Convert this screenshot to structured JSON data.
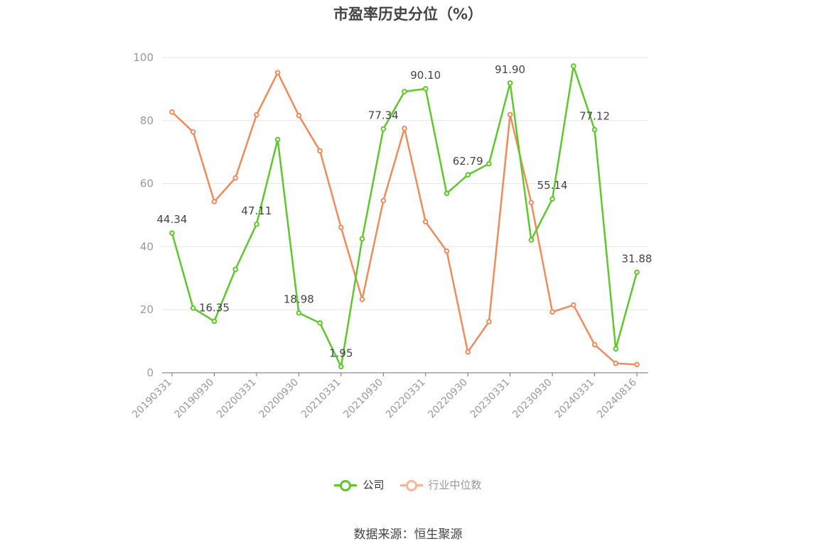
{
  "title": "市盈率历史分位（%）",
  "source": "数据来源：恒生聚源",
  "colors": {
    "company": "#5ec82a",
    "industry": "#f28a5a",
    "legend_industry": "#f9b49a",
    "axis_text": "#999999",
    "grid": "#e6e6ea",
    "label": "#444444"
  },
  "chart_data": {
    "type": "line",
    "ylim": [
      0,
      100
    ],
    "yticks": [
      0,
      20,
      40,
      60,
      80,
      100
    ],
    "x_ticks": [
      "20190331",
      "20190930",
      "20200331",
      "20200930",
      "20210331",
      "20210930",
      "20220331",
      "20220930",
      "20230331",
      "20230930",
      "20240331",
      "20240816"
    ],
    "x": [
      "20190331",
      "20190630",
      "20190930",
      "20191231",
      "20200331",
      "20200630",
      "20200930",
      "20201231",
      "20210331",
      "20210630",
      "20210930",
      "20211231",
      "20220331",
      "20220630",
      "20220930",
      "20221231",
      "20230331",
      "20230630",
      "20230930",
      "20231231",
      "20240331",
      "20240630",
      "20240816"
    ],
    "series": [
      {
        "name": "公司",
        "values": [
          44.34,
          20.5,
          16.35,
          32.8,
          47.11,
          74.0,
          18.98,
          15.8,
          1.95,
          42.5,
          77.34,
          89.2,
          90.1,
          56.9,
          62.79,
          66.3,
          91.9,
          42.1,
          55.14,
          97.3,
          77.12,
          7.6,
          31.88
        ]
      },
      {
        "name": "行业中位数",
        "values": [
          82.7,
          76.4,
          54.3,
          61.8,
          81.8,
          95.2,
          81.6,
          70.4,
          46.1,
          23.3,
          54.6,
          77.5,
          47.9,
          38.6,
          6.6,
          16.2,
          81.9,
          54.0,
          19.3,
          21.5,
          8.9,
          3.0,
          2.6
        ]
      }
    ],
    "data_labels": [
      {
        "index": 0,
        "text": "44.34"
      },
      {
        "index": 2,
        "text": "16.35"
      },
      {
        "index": 4,
        "text": "47.11"
      },
      {
        "index": 6,
        "text": "18.98"
      },
      {
        "index": 8,
        "text": "1.95"
      },
      {
        "index": 10,
        "text": "77.34"
      },
      {
        "index": 12,
        "text": "90.10"
      },
      {
        "index": 14,
        "text": "62.79"
      },
      {
        "index": 16,
        "text": "91.90"
      },
      {
        "index": 18,
        "text": "55.14"
      },
      {
        "index": 20,
        "text": "77.12"
      },
      {
        "index": 22,
        "text": "31.88"
      }
    ],
    "legend": [
      "公司",
      "行业中位数"
    ],
    "grid": true
  }
}
